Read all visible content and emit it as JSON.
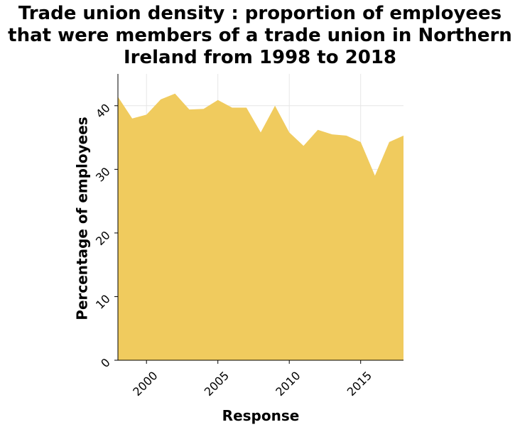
{
  "chart_data": {
    "type": "area",
    "title_lines": [
      "Trade union density : proportion of employees",
      "that were members of a trade union in Northern",
      "Ireland from 1998 to 2018"
    ],
    "xlabel": "Response",
    "ylabel": "Percentage of employees",
    "xlim": [
      1998,
      2018
    ],
    "ylim": [
      0,
      45
    ],
    "x_ticks": [
      2000,
      2005,
      2010,
      2015
    ],
    "y_ticks": [
      0,
      10,
      20,
      30,
      40
    ],
    "grid": true,
    "fill_color": "#f0cb5e",
    "grid_color": "#e6e6e6",
    "series": [
      {
        "x": [
          1998,
          1999,
          2000,
          2001,
          2002,
          2003,
          2004,
          2005,
          2006,
          2007,
          2008,
          2009,
          2010,
          2011,
          2012,
          2013,
          2014,
          2015,
          2016,
          2017,
          2018
        ],
        "values": [
          41.4,
          38.0,
          38.6,
          41.0,
          41.9,
          39.4,
          39.5,
          40.9,
          39.7,
          39.7,
          35.8,
          40.0,
          35.8,
          33.7,
          36.2,
          35.5,
          35.3,
          34.3,
          29.0,
          34.3,
          35.3
        ]
      }
    ]
  }
}
